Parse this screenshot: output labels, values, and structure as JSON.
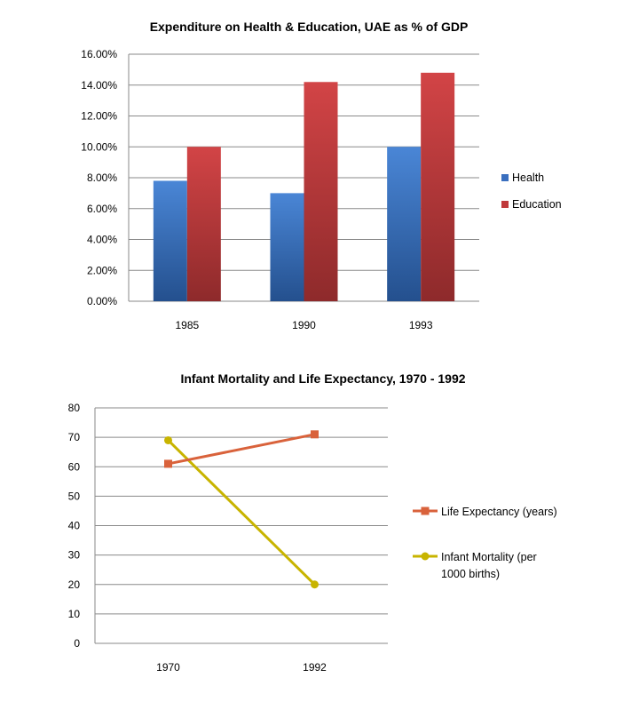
{
  "chart_data": [
    {
      "type": "bar",
      "title": "Expenditure on Health & Education, UAE as % of GDP",
      "categories": [
        "1985",
        "1990",
        "1993"
      ],
      "series": [
        {
          "name": "Health",
          "values": [
            7.8,
            7.0,
            10.0
          ],
          "color": "#3a6fbf"
        },
        {
          "name": "Education",
          "values": [
            10.0,
            14.2,
            14.8
          ],
          "color": "#c0393b"
        }
      ],
      "ylim": [
        0,
        16
      ],
      "yticks": [
        "0.00%",
        "2.00%",
        "4.00%",
        "6.00%",
        "8.00%",
        "10.00%",
        "12.00%",
        "14.00%",
        "16.00%"
      ],
      "grid": true,
      "legend": "right"
    },
    {
      "type": "line",
      "title": "Infant Mortality and Life Expectancy, 1970  - 1992",
      "categories": [
        "1970",
        "1992"
      ],
      "series": [
        {
          "name": "Life Expectancy (years)",
          "values": [
            61,
            71
          ],
          "color": "#d9623b",
          "marker": "square"
        },
        {
          "name_lines": [
            "Infant Mortality  (per",
            "1000 births)"
          ],
          "values": [
            69,
            20
          ],
          "color": "#c8b400",
          "marker": "circle"
        }
      ],
      "ylim": [
        0,
        80
      ],
      "yticks": [
        "0",
        "10",
        "20",
        "30",
        "40",
        "50",
        "60",
        "70",
        "80"
      ],
      "grid": true,
      "legend": "right"
    }
  ]
}
